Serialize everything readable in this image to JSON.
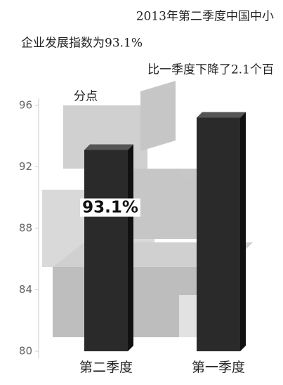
{
  "chart_data": {
    "type": "bar",
    "title": [
      "2013年第二季度中国中小",
      "企业发展指数为93.1%",
      "比一季度下降了2.1个百",
      "分点"
    ],
    "categories": [
      "第二季度",
      "第一季度"
    ],
    "values": [
      93.1,
      95.2
    ],
    "value_labels": [
      "93.1%",
      null
    ],
    "color": "#2a2a2a",
    "ylim": [
      80,
      96
    ],
    "yticks": [
      80,
      84,
      88,
      92,
      96
    ]
  }
}
